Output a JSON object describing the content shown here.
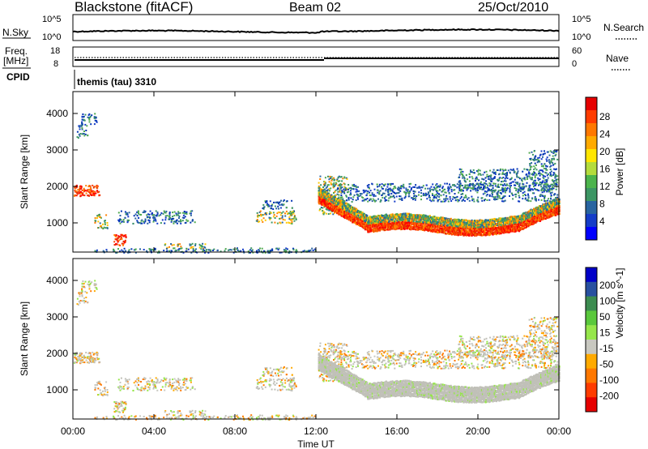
{
  "header": {
    "station": "Blackstone (fitACF)",
    "beam": "Beam 02",
    "date": "25/Oct/2010"
  },
  "nsky_panel": {
    "left_label": "N.Sky",
    "right_label": "N.Search",
    "left_ticks": [
      "10^5",
      "10^0"
    ],
    "right_ticks": [
      "10^5",
      "10^0"
    ]
  },
  "freq_panel": {
    "left_label_1": "Freq.",
    "left_label_2": "[MHz]",
    "right_label": "Nave",
    "left_ticks": [
      "18",
      "8"
    ],
    "right_ticks": [
      "60",
      "0"
    ]
  },
  "cpid": {
    "label": "CPID",
    "value": "themis (tau) 3310"
  },
  "chart_data": [
    {
      "type": "heatmap",
      "name": "power",
      "ylabel": "Slant Range [km]",
      "ylim": [
        200,
        4600
      ],
      "yticks": [
        1000,
        2000,
        3000,
        4000
      ],
      "xlim": [
        0,
        24
      ],
      "colorbar": {
        "label": "Power [dB]",
        "ticks": [
          "28",
          "24",
          "20",
          "16",
          "12",
          "8",
          "4"
        ],
        "colors": [
          "#e60000",
          "#ff3c00",
          "#ff7800",
          "#ffaa00",
          "#ffe600",
          "#b4dc3c",
          "#4cb44c",
          "#3c9664",
          "#2864a0",
          "#143cc8",
          "#0000ff"
        ]
      },
      "scatter_regions": [
        {
          "t0": 0.15,
          "t1": 0.7,
          "r0": 3350,
          "r1": 3700,
          "v": "weak"
        },
        {
          "t0": 0.4,
          "t1": 1.2,
          "r0": 3700,
          "r1": 4050,
          "v": "weak"
        },
        {
          "t0": 0.0,
          "t1": 1.3,
          "r0": 1750,
          "r1": 2050,
          "v": "strong"
        },
        {
          "t0": 1.0,
          "t1": 1.7,
          "r0": 850,
          "r1": 1250,
          "v": "mid"
        },
        {
          "t0": 2.0,
          "t1": 2.6,
          "r0": 400,
          "r1": 700,
          "v": "strong"
        },
        {
          "t0": 2.2,
          "t1": 6.0,
          "r0": 1000,
          "r1": 1350,
          "v": "weak"
        },
        {
          "t0": 4.5,
          "t1": 6.5,
          "r0": 300,
          "r1": 450,
          "v": "mid"
        },
        {
          "t0": 1.0,
          "t1": 12.0,
          "r0": 200,
          "r1": 330,
          "v": "weak"
        },
        {
          "t0": 9.0,
          "t1": 11.0,
          "r0": 1000,
          "r1": 1350,
          "v": "mid"
        },
        {
          "t0": 9.3,
          "t1": 10.8,
          "r0": 1400,
          "r1": 1650,
          "v": "weak"
        },
        {
          "t0": 12.1,
          "t1": 13.5,
          "r0": 1250,
          "r1": 2300,
          "v": "mid"
        },
        {
          "t0": 13.0,
          "t1": 23.9,
          "r0": 1600,
          "r1": 2100,
          "v": "weak"
        },
        {
          "t0": 19.0,
          "t1": 23.9,
          "r0": 1900,
          "r1": 2500,
          "v": "weak"
        },
        {
          "t0": 22.5,
          "t1": 23.9,
          "r0": 2500,
          "r1": 3000,
          "v": "weak"
        }
      ],
      "band": {
        "t0": 12.1,
        "t1": 24.0,
        "v": "strong"
      }
    },
    {
      "type": "heatmap",
      "name": "velocity",
      "ylabel": "Slant Range [km]",
      "xlabel": "Time UT",
      "ylim": [
        200,
        4600
      ],
      "yticks": [
        1000,
        2000,
        3000,
        4000
      ],
      "xlim": [
        0,
        24
      ],
      "xticks": [
        "00:00",
        "04:00",
        "08:00",
        "12:00",
        "16:00",
        "20:00",
        "00:00"
      ],
      "colorbar": {
        "label": "Velocity [m s^-1]",
        "ticks": [
          "200",
          "100",
          "50",
          "15",
          "-15",
          "-50",
          "-100",
          "-200"
        ],
        "colors": [
          "#0000c8",
          "#2850a0",
          "#3c8c50",
          "#5ac83c",
          "#96e64b",
          "#c8c8c0",
          "#ffaa00",
          "#ff7800",
          "#ff3c00",
          "#e60000"
        ]
      },
      "dominant_color": "#c0c0b8"
    }
  ]
}
